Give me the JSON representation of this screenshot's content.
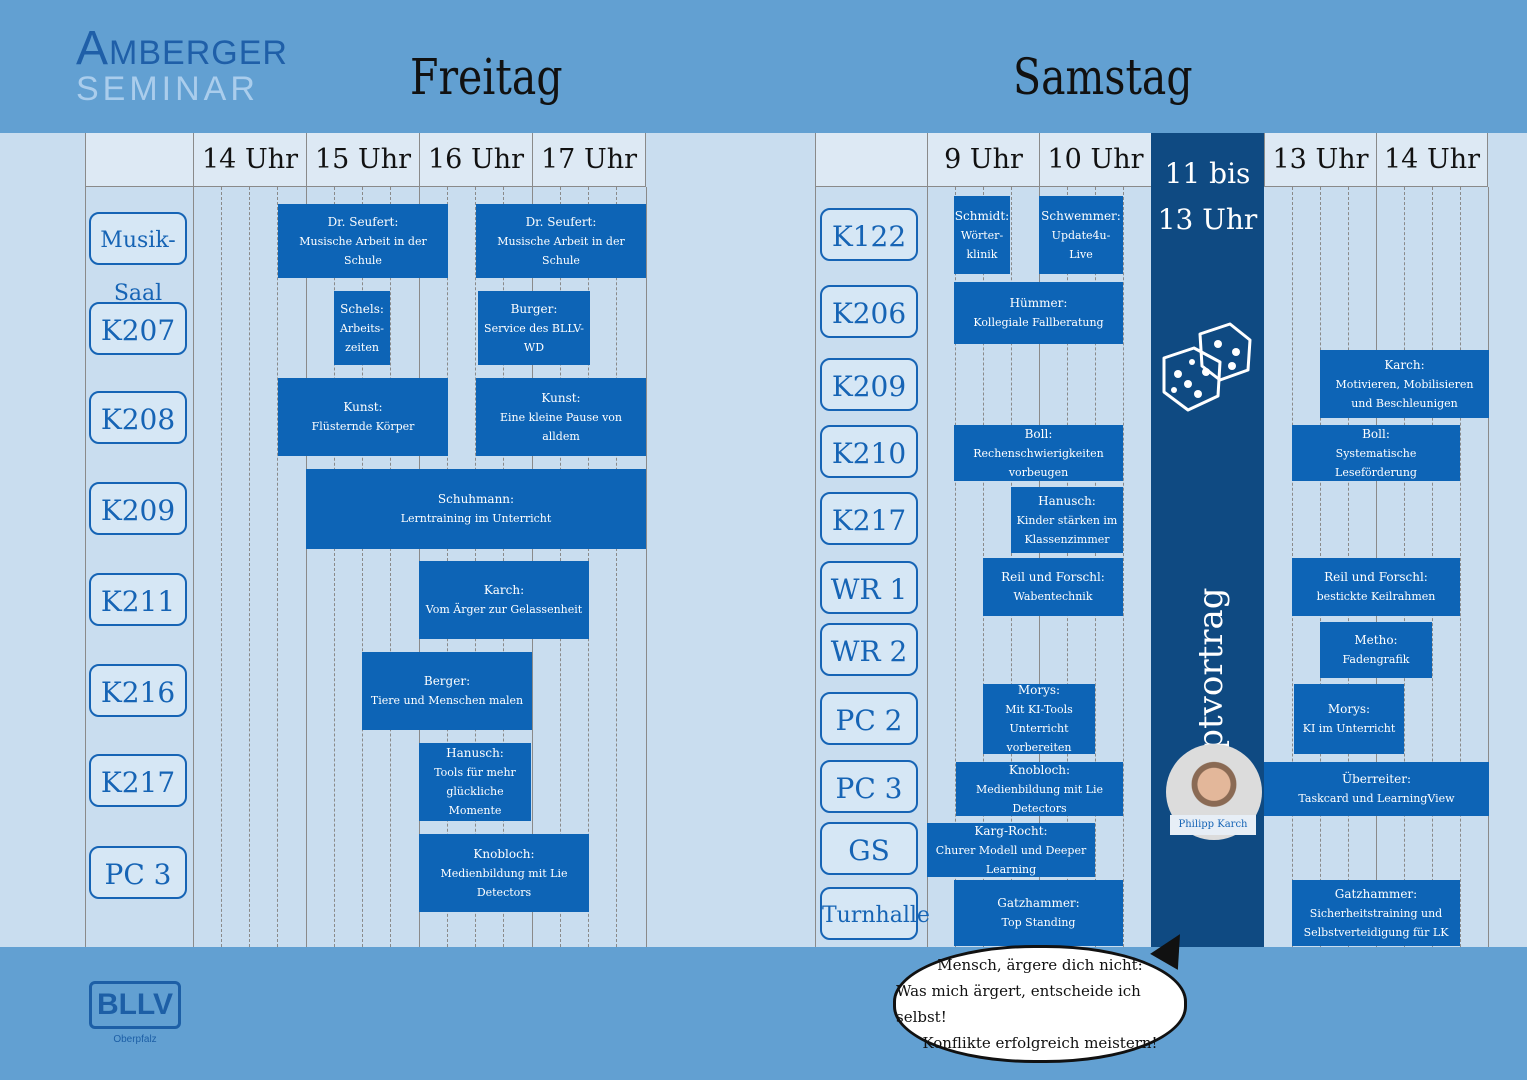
{
  "logo": {
    "line1_first": "A",
    "line1_rest": "MBERGER",
    "line2": "SEMINAR"
  },
  "days": {
    "friday": "Freitag",
    "saturday": "Samstag"
  },
  "friday": {
    "hours": [
      "14 Uhr",
      "15 Uhr",
      "16 Uhr",
      "17 Uhr"
    ],
    "rooms": [
      "Musik-Saal",
      "K207",
      "K208",
      "K209",
      "K211",
      "K216",
      "K217",
      "PC 3"
    ],
    "events": [
      {
        "name": "Dr. Seufert:",
        "title": "Musische Arbeit in der Schule"
      },
      {
        "name": "Dr. Seufert:",
        "title": "Musische Arbeit in der Schule"
      },
      {
        "name": "Schels:",
        "title": "Arbeits-zeiten"
      },
      {
        "name": "Burger:",
        "title": "Service des BLLV-WD"
      },
      {
        "name": "Kunst:",
        "title": "Flüsternde Körper"
      },
      {
        "name": "Kunst:",
        "title": "Eine kleine Pause von alldem"
      },
      {
        "name": "Schuhmann:",
        "title": "Lerntraining im Unterricht"
      },
      {
        "name": "Karch:",
        "title": "Vom Ärger zur Gelassenheit"
      },
      {
        "name": "Berger:",
        "title": "Tiere und Menschen malen"
      },
      {
        "name": "Hanusch:",
        "title": "Tools für mehr glückliche Momente"
      },
      {
        "name": "Knobloch:",
        "title": "Medienbildung mit Lie Detectors"
      }
    ]
  },
  "saturday": {
    "hours": [
      "9 Uhr",
      "10 Uhr",
      "13 Uhr",
      "14 Uhr"
    ],
    "keynote_time": "11 bis 13 Uhr",
    "keynote_title": "Hauptvortrag",
    "speaker": "Philipp Karch",
    "rooms": [
      "K122",
      "K206",
      "K209",
      "K210",
      "K217",
      "WR 1",
      "WR 2",
      "PC 2",
      "PC 3",
      "GS",
      "Turnhalle"
    ],
    "events": [
      {
        "name": "Schmidt:",
        "title": "Wörter-klinik"
      },
      {
        "name": "Schwemmer:",
        "title": "Update4u-Live"
      },
      {
        "name": "Hümmer:",
        "title": "Kollegiale Fallberatung"
      },
      {
        "name": "Karch:",
        "title": "Motivieren, Mobilisieren und Beschleunigen"
      },
      {
        "name": "Boll:",
        "title": "Rechenschwierigkeiten vorbeugen"
      },
      {
        "name": "Boll:",
        "title": "Systematische Leseförderung"
      },
      {
        "name": "Hanusch:",
        "title": "Kinder stärken im Klassenzimmer"
      },
      {
        "name": "Reil und Forschl:",
        "title": "Wabentechnik"
      },
      {
        "name": "Reil und Forschl:",
        "title": "bestickte Keilrahmen"
      },
      {
        "name": "Metho:",
        "title": "Fadengrafik"
      },
      {
        "name": "Morys:",
        "title": "Mit KI-Tools Unterricht vorbereiten"
      },
      {
        "name": "Morys:",
        "title": "KI im Unterricht"
      },
      {
        "name": "Knobloch:",
        "title": "Medienbildung mit Lie Detectors"
      },
      {
        "name": "Überreiter:",
        "title": "Taskcard und LearningView"
      },
      {
        "name": "Karg-Rocht:",
        "title": "Churer Modell und Deeper Learning"
      },
      {
        "name": "Gatzhammer:",
        "title": "Top Standing"
      },
      {
        "name": "Gatzhammer:",
        "title": "Sicherheitstraining und Selbstverteidigung für LK"
      }
    ]
  },
  "bubble": [
    "Mensch, ärgere dich nicht:",
    "Was mich ärgert, entscheide ich selbst!",
    "Konflikte erfolgreich meistern!"
  ],
  "footer_logo": {
    "name": "BLLV",
    "region": "Oberpfalz"
  },
  "colors": {
    "band": "#62a0d2",
    "event": "#0d64b6",
    "keynote": "#0f4a82",
    "background": "#c9ddef"
  }
}
